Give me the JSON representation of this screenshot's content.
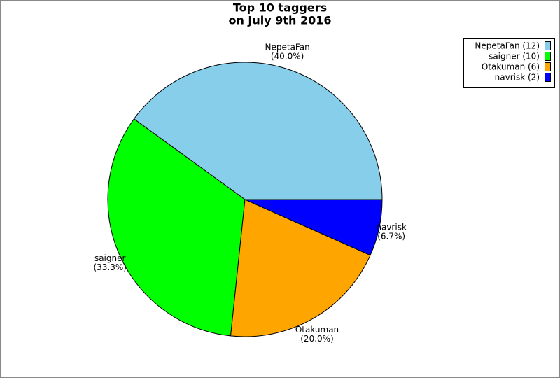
{
  "chart_data": {
    "type": "pie",
    "title": [
      "Top 10 taggers",
      "on July 9th 2016"
    ],
    "categories": [
      "NepetaFan",
      "saigner",
      "Otakuman",
      "navrisk"
    ],
    "values": [
      12,
      10,
      6,
      2
    ],
    "colors": [
      "#87ceeb",
      "#00ff00",
      "#ffa500",
      "#0000ff"
    ],
    "percent_labels": [
      "(40.0%)",
      "(33.3%)",
      "(20.0%)",
      "(6.7%)"
    ],
    "legend_labels": [
      "NepetaFan (12)",
      "saigner (10)",
      "Otakuman (6)",
      "navrisk (2)"
    ],
    "legend": "upper right"
  }
}
